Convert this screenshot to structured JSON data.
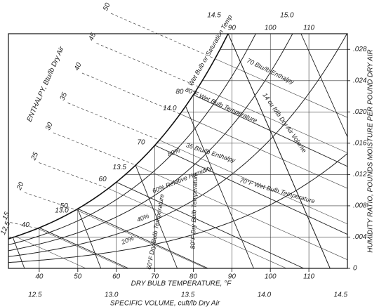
{
  "chart_data": {
    "type": "psychrometric",
    "x_label": "DRY BULB TEMPERATURE, °F",
    "y2_label": "HUMIDITY RATIO, POUNDS MOISTURE PER POUND DRY AIR",
    "enthalpy_label": "ENTHALPY, Btu/lb Dry Air",
    "volume_label": "SPECIFIC VOLUME, cuft/lb Dry Air",
    "xlim": [
      32,
      120
    ],
    "xticks": [
      40,
      50,
      60,
      70,
      80,
      90,
      100,
      110
    ],
    "top_xticks": [
      90,
      100,
      110
    ],
    "y2lim": [
      0,
      0.03
    ],
    "y2ticks": [
      0,
      {
        "value": 0.004,
        "label": ".004"
      },
      {
        "value": 0.008,
        "label": ".008"
      },
      {
        "value": 0.012,
        "label": ".012"
      },
      {
        "value": 0.016,
        "label": ".016"
      },
      {
        "value": 0.02,
        "label": ".020"
      },
      {
        "value": 0.024,
        "label": ".024"
      },
      {
        "value": 0.028,
        "label": ".028"
      }
    ],
    "rh_curves": [
      {
        "value": 20,
        "label": "20%"
      },
      {
        "value": 40,
        "label": "40%"
      },
      {
        "value": 60,
        "label": "60% Relative Humidity"
      },
      {
        "value": 80,
        "label": "80%"
      }
    ],
    "wet_bulb": [
      40,
      50,
      60,
      70,
      80
    ],
    "enthalpy": [
      12.5,
      15,
      20,
      25,
      30,
      35,
      40,
      45,
      50
    ],
    "volume_bottom": [
      12.5,
      {
        "value": 13,
        "label": "13.0"
      },
      13.5,
      {
        "value": 14,
        "label": "14.0"
      },
      14.5
    ],
    "volume_top": [
      14.5,
      {
        "value": 15,
        "label": "15.0"
      }
    ],
    "volume_inner": [
      {
        "value": 13,
        "label": "13.0"
      },
      13.5,
      {
        "value": 14,
        "label": "14.0"
      }
    ],
    "annotations": [
      "Wet Bulb or Saturation Temp",
      "70 Btu/lb Enthalpy",
      "80°F Wet Bulb Temperature",
      "14 cu ft/lb Dry Air Volume",
      "35 Btu/lb Enthalpy",
      "70°F Wet Bulb Temperature",
      "80°F Dry Bulb Temperature",
      "60°F Dry Bulb Temperature"
    ]
  }
}
